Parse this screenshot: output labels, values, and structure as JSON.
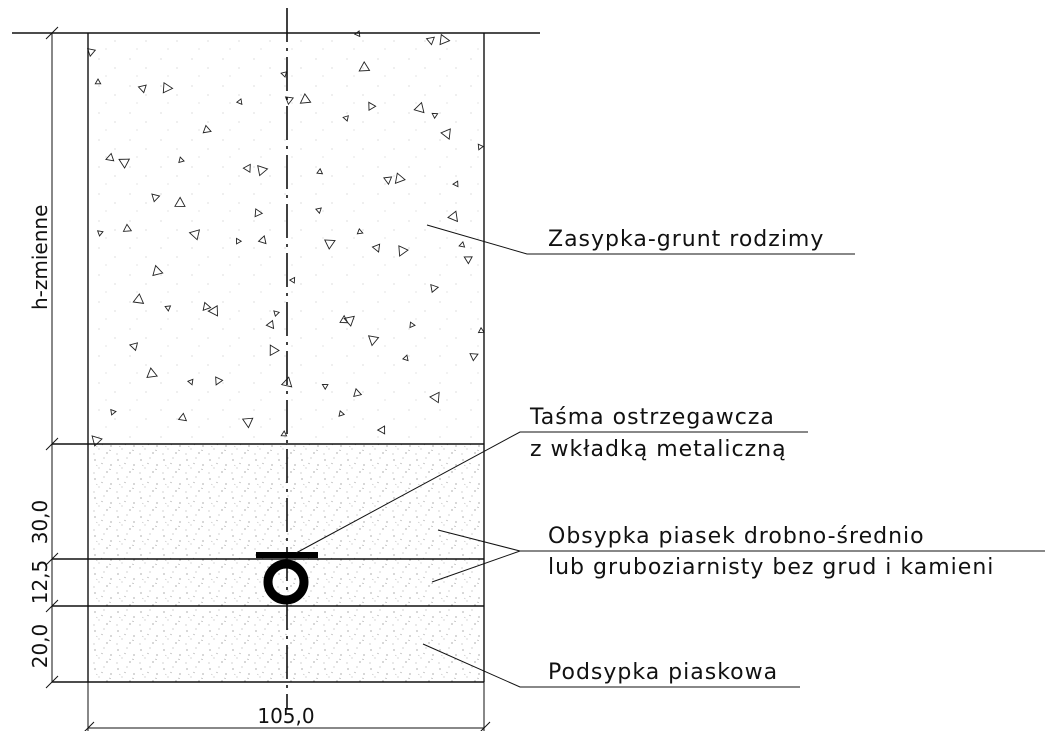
{
  "labels": {
    "backfill": "Zasypka-grunt rodzimy",
    "tape_line1": "Taśma ostrzegawcza",
    "tape_line2": "z wkładką metaliczną",
    "sand_line1": "Obsypka piasek drobno-średnio",
    "sand_line2": "lub gruboziarnisty bez grud i kamieni",
    "bedding": "Podsypka piaskowa"
  },
  "dimensions": {
    "height": "h-zmienne",
    "cover": "30,0",
    "pipe_zone": "12,5",
    "bed": "20,0",
    "width": "105,0"
  }
}
